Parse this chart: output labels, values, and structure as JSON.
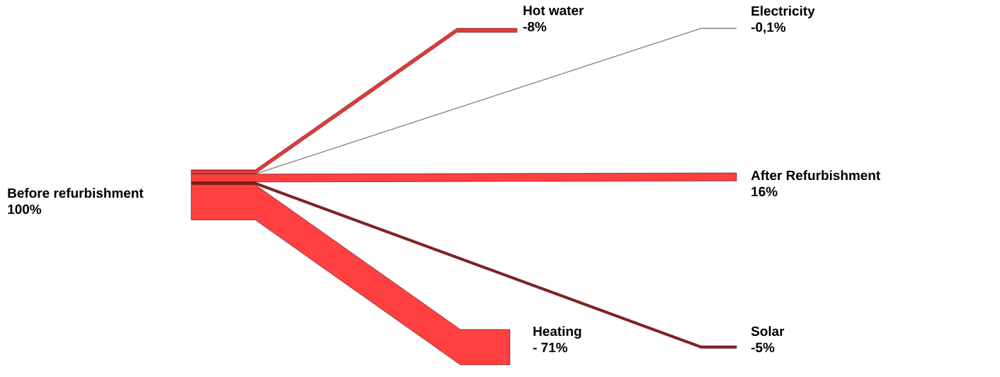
{
  "chart_data": {
    "type": "other",
    "categories": [
      "Before refurbishment",
      "Hot water",
      "Electricity",
      "After Refurbishment",
      "Solar",
      "Heating"
    ],
    "values": [
      100,
      -8,
      -0.1,
      16,
      -5,
      -71
    ],
    "value_labels": [
      "100%",
      "-8%",
      "-0,1%",
      "16%",
      "-5%",
      "- 71%"
    ],
    "colors": [
      "#ff4040",
      "#e83838",
      "#707070",
      "#ff4040",
      "#8a2020",
      "#ff4040"
    ]
  }
}
